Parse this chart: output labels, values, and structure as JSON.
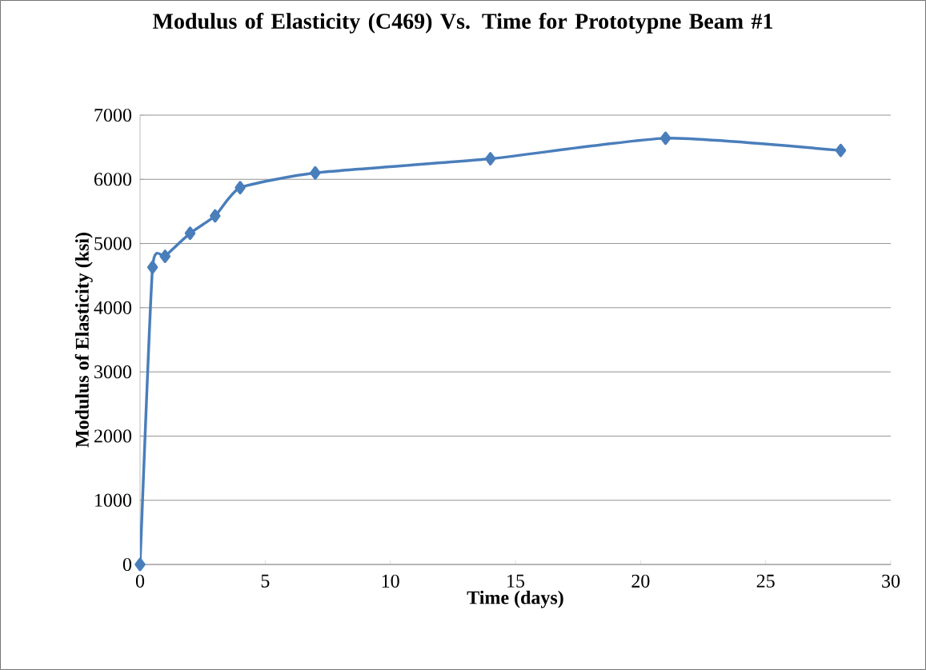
{
  "chart_data": {
    "type": "line",
    "title": "Modulus of Elasticity (C469) Vs. Time for Prototypne Beam #1",
    "xlabel": "Time (days)",
    "ylabel": "Modulus of Elasticity (ksi)",
    "x": [
      0,
      0.5,
      1,
      2,
      3,
      4,
      7,
      14,
      21,
      28
    ],
    "series": [
      {
        "color": "#4a7ebb",
        "values": [
          0,
          4630,
          4800,
          5160,
          5430,
          5870,
          6100,
          6320,
          6640,
          6450
        ]
      }
    ],
    "xlim": [
      0,
      30
    ],
    "xticks": [
      0,
      5,
      10,
      15,
      20,
      25,
      30
    ],
    "ylim": [
      0,
      7000
    ],
    "yticks": [
      0,
      1000,
      2000,
      3000,
      4000,
      5000,
      6000,
      7000
    ],
    "grid": "y",
    "marker": "diamond",
    "line_style": "solid"
  }
}
